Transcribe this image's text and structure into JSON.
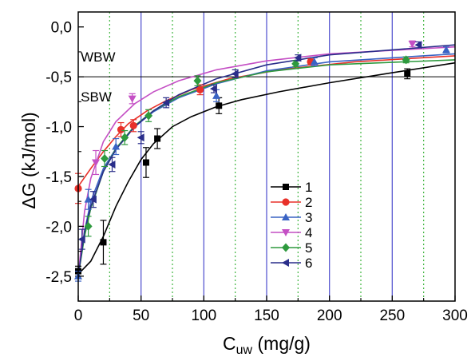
{
  "chart_data": {
    "type": "scatter",
    "xlabel_main": "C",
    "xlabel_sub": "uw",
    "xlabel_unit": "(mg/g)",
    "ylabel": "ΔG (kJ/mol)",
    "xlim": [
      0,
      300
    ],
    "ylim": [
      -2.75,
      0.15
    ],
    "xticks": [
      0,
      50,
      100,
      150,
      200,
      250,
      300
    ],
    "xtick_labels": [
      "0",
      "50",
      "100",
      "150",
      "200",
      "250",
      "300"
    ],
    "yticks": [
      0.0,
      -0.5,
      -1.0,
      -1.5,
      -2.0,
      -2.5
    ],
    "ytick_labels": [
      "0,0",
      "-0,5",
      "-1,0",
      "-1,5",
      "-2,0",
      "-2,5"
    ],
    "reference_line": {
      "y": -0.5,
      "color": "#000000"
    },
    "vertical_lines_solid": {
      "x": [
        50,
        100,
        150,
        200,
        250
      ],
      "color": "#5a5ad2"
    },
    "vertical_lines_dotted": {
      "x": [
        25,
        75,
        125,
        175,
        225,
        275
      ],
      "color": "#3cb43c"
    },
    "annotations": [
      {
        "text": "WBW",
        "x": 2,
        "y": -0.3
      },
      {
        "text": "SBW",
        "x": 2,
        "y": -0.7
      }
    ],
    "legend_position": "center-right",
    "series": [
      {
        "name": "1",
        "color": "#000000",
        "marker": "square",
        "x": [
          0,
          20,
          54,
          63,
          112,
          262
        ],
        "y": [
          -2.45,
          -2.16,
          -1.36,
          -1.12,
          -0.79,
          -0.47
        ],
        "err": [
          0.05,
          0.22,
          0.15,
          0.1,
          0.08,
          0.05
        ],
        "curve_x": [
          0,
          10,
          20,
          30,
          40,
          50,
          60,
          75,
          90,
          110,
          130,
          160,
          200,
          250,
          300
        ],
        "curve_y": [
          -2.48,
          -2.35,
          -2.1,
          -1.8,
          -1.55,
          -1.33,
          -1.17,
          -1.0,
          -0.9,
          -0.8,
          -0.73,
          -0.65,
          -0.56,
          -0.46,
          -0.36
        ]
      },
      {
        "name": "2",
        "color": "#e8312a",
        "marker": "circle",
        "x": [
          0,
          34,
          44,
          97,
          185
        ],
        "y": [
          -1.62,
          -1.03,
          -0.99,
          -0.63,
          -0.35
        ],
        "err": [
          0.15,
          0.07,
          0.06,
          0.05,
          0.03
        ],
        "curve_x": [
          0,
          10,
          20,
          30,
          40,
          55,
          70,
          90,
          120,
          160,
          220,
          300
        ],
        "curve_y": [
          -1.6,
          -1.42,
          -1.25,
          -1.1,
          -0.97,
          -0.84,
          -0.74,
          -0.63,
          -0.52,
          -0.43,
          -0.35,
          -0.29
        ]
      },
      {
        "name": "3",
        "color": "#3a63c4",
        "marker": "triangle-up",
        "x": [
          0,
          8,
          30,
          110,
          188,
          293
        ],
        "y": [
          -2.5,
          -1.73,
          -1.2,
          -0.69,
          -0.35,
          -0.23
        ],
        "err": [
          0.05,
          0.1,
          0.08,
          0.06,
          0.04,
          0.03
        ],
        "curve_x": [
          0,
          5,
          10,
          20,
          30,
          45,
          60,
          80,
          110,
          150,
          200,
          300
        ],
        "curve_y": [
          -2.5,
          -2.05,
          -1.75,
          -1.42,
          -1.22,
          -1.0,
          -0.85,
          -0.71,
          -0.57,
          -0.44,
          -0.35,
          -0.27
        ]
      },
      {
        "name": "4",
        "color": "#c44fc4",
        "marker": "triangle-down",
        "x": [
          14,
          43,
          266
        ],
        "y": [
          -1.36,
          -0.72,
          -0.17
        ],
        "err": [
          0.12,
          0.05,
          0.03
        ],
        "curve_x": [
          0,
          5,
          10,
          20,
          30,
          45,
          60,
          80,
          110,
          150,
          200,
          300
        ],
        "curve_y": [
          -2.5,
          -1.85,
          -1.52,
          -1.15,
          -0.95,
          -0.77,
          -0.65,
          -0.54,
          -0.43,
          -0.34,
          -0.27,
          -0.2
        ]
      },
      {
        "name": "5",
        "color": "#2e9a3e",
        "marker": "diamond",
        "x": [
          8,
          21,
          37,
          56,
          95,
          173,
          261
        ],
        "y": [
          -2.0,
          -1.32,
          -1.11,
          -0.89,
          -0.54,
          -0.37,
          -0.33
        ],
        "err": [
          0.1,
          0.08,
          0.07,
          0.06,
          0.05,
          0.03,
          0.03
        ],
        "curve_x": [
          0,
          5,
          10,
          20,
          30,
          45,
          60,
          80,
          110,
          150,
          200,
          300
        ],
        "curve_y": [
          -2.5,
          -2.1,
          -1.82,
          -1.45,
          -1.22,
          -0.99,
          -0.84,
          -0.7,
          -0.56,
          -0.45,
          -0.38,
          -0.33
        ]
      },
      {
        "name": "6",
        "color": "#2a2e8a",
        "marker": "triangle-left",
        "x": [
          3,
          12,
          27,
          50,
          70,
          108,
          125,
          175,
          271
        ],
        "y": [
          -2.13,
          -1.73,
          -1.38,
          -1.11,
          -0.76,
          -0.62,
          -0.47,
          -0.31,
          -0.18
        ],
        "err": [
          0.1,
          0.08,
          0.07,
          0.06,
          0.05,
          0.04,
          0.04,
          0.03,
          0.03
        ],
        "curve_x": [
          0,
          5,
          10,
          20,
          30,
          45,
          60,
          80,
          110,
          150,
          200,
          300
        ],
        "curve_y": [
          -2.5,
          -2.05,
          -1.8,
          -1.45,
          -1.23,
          -1.0,
          -0.84,
          -0.68,
          -0.52,
          -0.38,
          -0.28,
          -0.18
        ]
      }
    ]
  }
}
